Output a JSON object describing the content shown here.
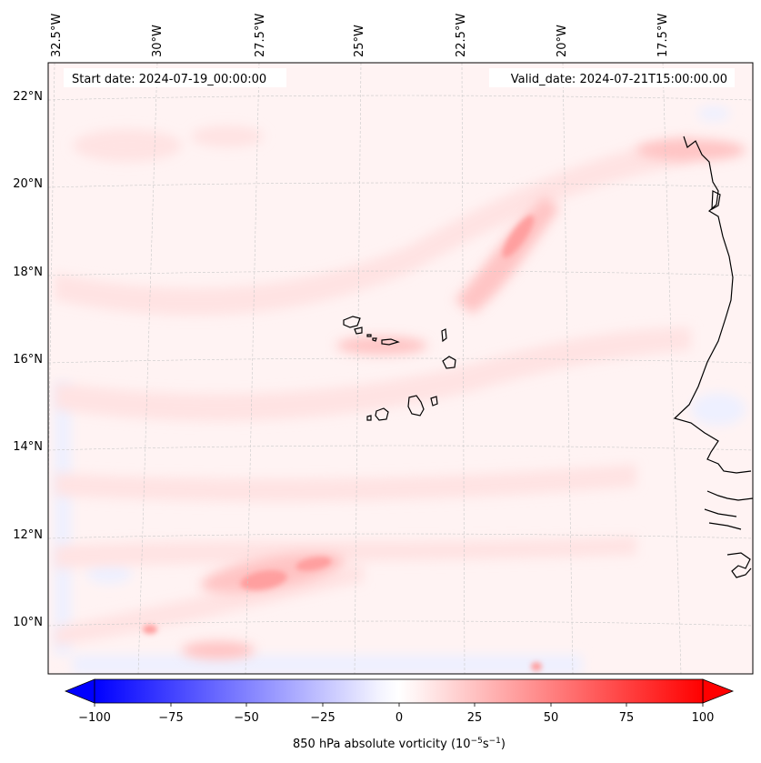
{
  "header": {
    "start_date": "Start date: 2024-07-19_00:00:00",
    "valid_date": "Valid_date: 2024-07-21T15:00:00.00"
  },
  "map": {
    "lon_labels": [
      "32.5°W",
      "30°W",
      "27.5°W",
      "25°W",
      "22.5°W",
      "20°W",
      "17.5°W"
    ],
    "lat_labels": [
      "22°N",
      "20°N",
      "18°N",
      "16°N",
      "14°N",
      "12°N",
      "10°N"
    ]
  },
  "colorbar": {
    "ticks": [
      "−100",
      "−75",
      "−50",
      "−25",
      "0",
      "25",
      "50",
      "75",
      "100"
    ],
    "label_main": "850 hPa absolute vorticity (10",
    "label_exp1": "−5",
    "label_mid": "s",
    "label_exp2": "−1",
    "label_end": ")",
    "neg_color": "#0000ff",
    "pos_color": "#ff0000",
    "neutral_color": "#ffffff"
  }
}
